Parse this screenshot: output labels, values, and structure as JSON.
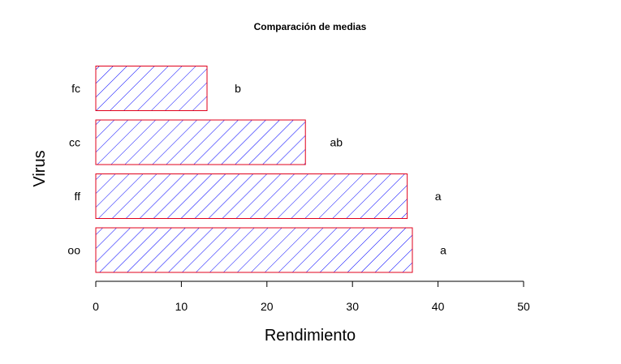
{
  "chart_data": {
    "type": "bar",
    "orientation": "horizontal",
    "title": "Comparación de medias",
    "xlabel": "Rendimiento",
    "ylabel": "Virus",
    "categories": [
      "oo",
      "ff",
      "cc",
      "fc"
    ],
    "values": [
      37,
      36.4,
      24.5,
      13
    ],
    "bar_labels": [
      "a",
      "a",
      "ab",
      "b"
    ],
    "xlim": [
      0,
      50
    ],
    "xticks": [
      0,
      10,
      20,
      30,
      40,
      50
    ],
    "grid": false,
    "legend": "none",
    "colors": {
      "fill_hatch": "#0000ff",
      "border": "#e0001b"
    }
  }
}
